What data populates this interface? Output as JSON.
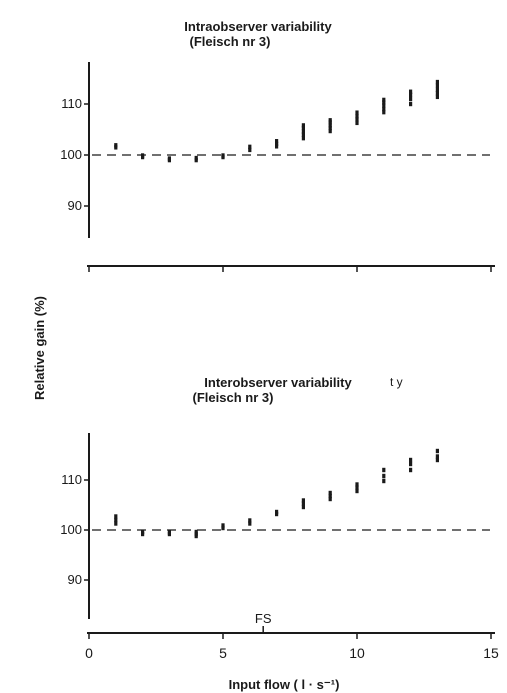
{
  "ylabel": "Relative gain (%)",
  "xlabel": "Input flow ( l · s⁻¹)",
  "fs_label": "FS",
  "x_tick_labels": [
    "0",
    "5",
    "10",
    "15"
  ],
  "colors": {
    "ink": "#1a1a1a"
  },
  "chart_data": [
    {
      "type": "scatter",
      "title": "Intraobserver variability",
      "subtitle": "(Fleisch nr 3)",
      "xlim": [
        0,
        15
      ],
      "ylim": [
        86,
        118
      ],
      "y_tick_labels": [
        "110",
        "100",
        "90"
      ],
      "y_ticks": [
        110,
        100,
        90
      ],
      "reference_line": 100,
      "x": [
        1,
        2,
        3,
        4,
        5,
        6,
        7,
        8,
        9,
        10,
        11,
        12,
        13
      ],
      "y_groups": [
        [
          101.5,
          101.9
        ],
        [
          99.6,
          99.9
        ],
        [
          99.0,
          99.3
        ],
        [
          99.0,
          99.4
        ],
        [
          99.6,
          99.9
        ],
        [
          101.0,
          101.6
        ],
        [
          101.7,
          102.2,
          102.7
        ],
        [
          103.3,
          104.0,
          104.6,
          105.3,
          105.8
        ],
        [
          104.7,
          105.3,
          105.8,
          106.4,
          106.8
        ],
        [
          106.3,
          107.0,
          107.6,
          108.3
        ],
        [
          108.4,
          109.0,
          109.7,
          110.3,
          110.8
        ],
        [
          110.0,
          111.0,
          111.8,
          112.4
        ],
        [
          111.4,
          112.1,
          112.8,
          113.6,
          114.3
        ]
      ]
    },
    {
      "type": "scatter",
      "title": "Interobserver variability",
      "subtitle": "(Fleisch nr 3)",
      "title_suffix": "t y",
      "xlim": [
        0,
        15
      ],
      "ylim": [
        86,
        118
      ],
      "y_tick_labels": [
        "110",
        "100",
        "90"
      ],
      "y_ticks": [
        110,
        100,
        90
      ],
      "reference_line": 100,
      "fs_x": 6.5,
      "x": [
        1,
        2,
        3,
        4,
        5,
        6,
        7,
        8,
        9,
        10,
        11,
        12,
        13
      ],
      "y_groups": [
        [
          101.3,
          102.0,
          102.7
        ],
        [
          99.2,
          99.6
        ],
        [
          99.2,
          99.5
        ],
        [
          98.8,
          99.2,
          99.6
        ],
        [
          100.4,
          100.9
        ],
        [
          101.3,
          101.9
        ],
        [
          103.2,
          103.6
        ],
        [
          104.6,
          105.3,
          105.9
        ],
        [
          106.2,
          106.8,
          107.4
        ],
        [
          107.8,
          108.5,
          109.1
        ],
        [
          109.8,
          110.8,
          112.0
        ],
        [
          112.0,
          113.2,
          114.0
        ],
        [
          114.0,
          114.7,
          115.8
        ]
      ]
    }
  ]
}
